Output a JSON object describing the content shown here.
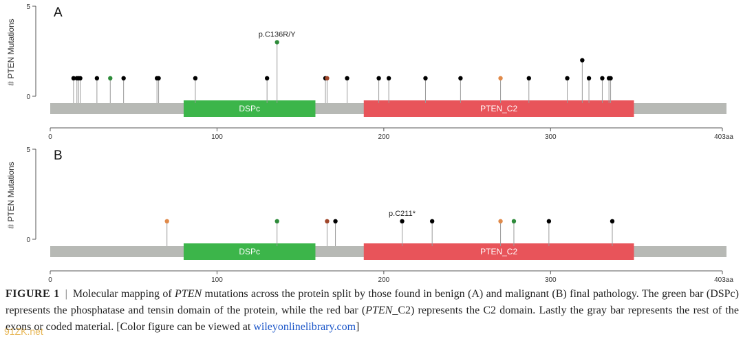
{
  "chart_data": [
    {
      "type": "lollipop",
      "panel": "A",
      "ylabel": "# PTEN Mutations",
      "ylim": [
        0,
        5
      ],
      "y_ticks": [
        0,
        5
      ],
      "protein_length": 403,
      "x_ticks": [
        0,
        100,
        200,
        300
      ],
      "end_label": "403aa",
      "domains": [
        {
          "name": "DSPc",
          "start": 80,
          "end": 159,
          "color": "#3cb54a"
        },
        {
          "name": "PTEN_C2",
          "start": 188,
          "end": 350,
          "color": "#e8545a"
        }
      ],
      "mutations": [
        {
          "pos": 14,
          "count": 1,
          "color": "#000000"
        },
        {
          "pos": 16,
          "count": 1,
          "color": "#000000"
        },
        {
          "pos": 17,
          "count": 1,
          "color": "#000000"
        },
        {
          "pos": 18,
          "count": 1,
          "color": "#000000"
        },
        {
          "pos": 28,
          "count": 1,
          "color": "#000000"
        },
        {
          "pos": 36,
          "count": 1,
          "color": "#2e8b3a"
        },
        {
          "pos": 44,
          "count": 1,
          "color": "#000000"
        },
        {
          "pos": 64,
          "count": 1,
          "color": "#000000"
        },
        {
          "pos": 65,
          "count": 1,
          "color": "#000000"
        },
        {
          "pos": 87,
          "count": 1,
          "color": "#000000"
        },
        {
          "pos": 130,
          "count": 1,
          "color": "#000000"
        },
        {
          "pos": 136,
          "count": 3,
          "color": "#2e8b3a",
          "label": "p.C136R/Y"
        },
        {
          "pos": 165,
          "count": 1,
          "color": "#000000"
        },
        {
          "pos": 166,
          "count": 1,
          "color": "#a0462a"
        },
        {
          "pos": 178,
          "count": 1,
          "color": "#000000"
        },
        {
          "pos": 197,
          "count": 1,
          "color": "#000000"
        },
        {
          "pos": 203,
          "count": 1,
          "color": "#000000"
        },
        {
          "pos": 225,
          "count": 1,
          "color": "#000000"
        },
        {
          "pos": 246,
          "count": 1,
          "color": "#000000"
        },
        {
          "pos": 270,
          "count": 1,
          "color": "#e08a4a"
        },
        {
          "pos": 287,
          "count": 1,
          "color": "#000000"
        },
        {
          "pos": 310,
          "count": 1,
          "color": "#000000"
        },
        {
          "pos": 319,
          "count": 2,
          "color": "#000000"
        },
        {
          "pos": 323,
          "count": 1,
          "color": "#000000"
        },
        {
          "pos": 331,
          "count": 1,
          "color": "#000000"
        },
        {
          "pos": 335,
          "count": 1,
          "color": "#000000"
        },
        {
          "pos": 336,
          "count": 1,
          "color": "#000000"
        }
      ]
    },
    {
      "type": "lollipop",
      "panel": "B",
      "ylabel": "# PTEN Mutations",
      "ylim": [
        0,
        5
      ],
      "y_ticks": [
        0,
        5
      ],
      "protein_length": 403,
      "x_ticks": [
        0,
        100,
        200,
        300
      ],
      "end_label": "403aa",
      "domains": [
        {
          "name": "DSPc",
          "start": 80,
          "end": 159,
          "color": "#3cb54a"
        },
        {
          "name": "PTEN_C2",
          "start": 188,
          "end": 350,
          "color": "#e8545a"
        }
      ],
      "mutations": [
        {
          "pos": 70,
          "count": 1,
          "color": "#e08a4a"
        },
        {
          "pos": 136,
          "count": 1,
          "color": "#2e8b3a"
        },
        {
          "pos": 166,
          "count": 1,
          "color": "#a0462a"
        },
        {
          "pos": 171,
          "count": 1,
          "color": "#000000"
        },
        {
          "pos": 211,
          "count": 1,
          "color": "#000000",
          "label": "p.C211*"
        },
        {
          "pos": 229,
          "count": 1,
          "color": "#000000"
        },
        {
          "pos": 270,
          "count": 1,
          "color": "#e08a4a"
        },
        {
          "pos": 278,
          "count": 1,
          "color": "#2e8b3a"
        },
        {
          "pos": 299,
          "count": 1,
          "color": "#000000"
        },
        {
          "pos": 337,
          "count": 1,
          "color": "#000000"
        }
      ]
    }
  ],
  "caption": {
    "label": "FIGURE 1",
    "separator": "|",
    "t1": "Molecular mapping of ",
    "gene1": "PTEN",
    "t2": " mutations across the protein split by those found in benign (A) and malignant (B) final pathology. The green bar (DSPc) represents the phosphatase and tensin domain of the protein, while the red bar (",
    "gene2": "PTEN",
    "t3": "_C2) represents the C2 domain. Lastly the gray bar represents the rest of the exons or coded material. [Color figure can be viewed at ",
    "link": "wileyonlinelibrary.com",
    "t4": "]"
  },
  "watermark": "91ZK.net"
}
